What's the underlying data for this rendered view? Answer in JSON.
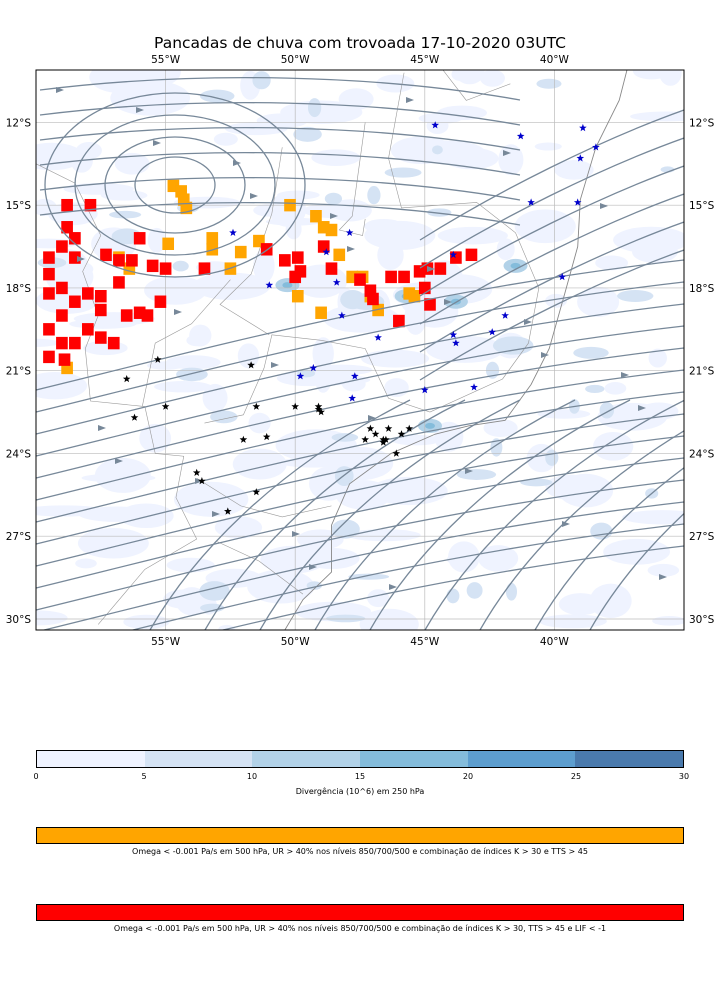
{
  "title": "Pancadas de chuva com trovoada 17-10-2020 03UTC",
  "map": {
    "lon_ticks": [
      {
        "value": -55,
        "label": "55°W"
      },
      {
        "value": -50,
        "label": "50°W"
      },
      {
        "value": -45,
        "label": "45°W"
      },
      {
        "value": -40,
        "label": "40°W"
      }
    ],
    "lat_ticks": [
      {
        "value": -12,
        "label": "12°S"
      },
      {
        "value": -15,
        "label": "15°S"
      },
      {
        "value": -18,
        "label": "18°S"
      },
      {
        "value": -21,
        "label": "21°S"
      },
      {
        "value": -24,
        "label": "24°S"
      },
      {
        "value": -27,
        "label": "27°S"
      },
      {
        "value": -30,
        "label": "30°S"
      }
    ],
    "streamline_color": "#778899",
    "black_stars": [
      [
        -56.5,
        -21.3
      ],
      [
        -55.3,
        -20.6
      ],
      [
        -55.0,
        -22.3
      ],
      [
        -56.2,
        -22.7
      ],
      [
        -53.8,
        -24.7
      ],
      [
        -53.6,
        -25.0
      ],
      [
        -52.6,
        -26.1
      ],
      [
        -51.7,
        -20.8
      ],
      [
        -51.5,
        -22.3
      ],
      [
        -51.1,
        -23.4
      ],
      [
        -52.0,
        -23.5
      ],
      [
        -51.5,
        -25.4
      ],
      [
        -50.0,
        -22.3
      ],
      [
        -49.1,
        -22.3
      ],
      [
        -49.0,
        -22.5
      ],
      [
        -49.1,
        -22.4
      ],
      [
        -47.3,
        -23.5
      ],
      [
        -47.1,
        -23.1
      ],
      [
        -46.9,
        -23.3
      ],
      [
        -46.6,
        -23.5
      ],
      [
        -46.6,
        -23.6
      ],
      [
        -46.4,
        -23.1
      ],
      [
        -46.5,
        -23.5
      ],
      [
        -46.1,
        -24.0
      ],
      [
        -45.9,
        -23.3
      ],
      [
        -45.6,
        -23.1
      ]
    ],
    "blue_stars": [
      [
        -52.4,
        -16.0
      ],
      [
        -51.0,
        -17.9
      ],
      [
        -49.8,
        -21.2
      ],
      [
        -49.3,
        -20.9
      ],
      [
        -48.4,
        -17.8
      ],
      [
        -48.2,
        -19.0
      ],
      [
        -47.9,
        -16.0
      ],
      [
        -47.8,
        -22.0
      ],
      [
        -47.7,
        -21.2
      ],
      [
        -46.8,
        -19.8
      ],
      [
        -45.0,
        -21.7
      ],
      [
        -44.6,
        -12.1
      ],
      [
        -43.9,
        -19.7
      ],
      [
        -43.8,
        -20.0
      ],
      [
        -43.9,
        -16.8
      ],
      [
        -43.1,
        -21.6
      ],
      [
        -42.4,
        -19.6
      ],
      [
        -41.9,
        -19.0
      ],
      [
        -41.3,
        -12.5
      ],
      [
        -40.9,
        -14.9
      ],
      [
        -39.7,
        -17.6
      ],
      [
        -39.1,
        -14.9
      ],
      [
        -39.0,
        -13.3
      ],
      [
        -38.9,
        -12.2
      ],
      [
        -38.4,
        -12.9
      ],
      [
        -48.8,
        -16.7
      ]
    ],
    "red_cells": [
      [
        -59.5,
        -16.9
      ],
      [
        -59.0,
        -16.5
      ],
      [
        -58.5,
        -16.9
      ],
      [
        -58.5,
        -16.2
      ],
      [
        -58.8,
        -15.8
      ],
      [
        -57.9,
        -15.0
      ],
      [
        -58.8,
        -15.0
      ],
      [
        -59.5,
        -17.5
      ],
      [
        -59.5,
        -18.2
      ],
      [
        -59.0,
        -18.0
      ],
      [
        -58.5,
        -18.5
      ],
      [
        -59.0,
        -19.0
      ],
      [
        -59.5,
        -19.5
      ],
      [
        -59.0,
        -20.0
      ],
      [
        -58.5,
        -20.0
      ],
      [
        -59.5,
        -20.5
      ],
      [
        -58.9,
        -20.6
      ],
      [
        -58.0,
        -19.5
      ],
      [
        -57.5,
        -19.8
      ],
      [
        -57.0,
        -20.0
      ],
      [
        -58.0,
        -18.2
      ],
      [
        -57.5,
        -18.8
      ],
      [
        -56.5,
        -19.0
      ],
      [
        -56.0,
        -18.9
      ],
      [
        -55.2,
        -18.5
      ],
      [
        -55.7,
        -19.0
      ],
      [
        -56.8,
        -17.8
      ],
      [
        -56.3,
        -17.0
      ],
      [
        -56.0,
        -16.2
      ],
      [
        -55.5,
        -17.2
      ],
      [
        -55.0,
        -17.3
      ],
      [
        -56.8,
        -17.0
      ],
      [
        -57.3,
        -16.8
      ],
      [
        -57.5,
        -18.3
      ],
      [
        -53.5,
        -17.3
      ],
      [
        -51.1,
        -16.6
      ],
      [
        -50.4,
        -17.0
      ],
      [
        -50.0,
        -17.6
      ],
      [
        -49.8,
        -17.4
      ],
      [
        -49.9,
        -16.9
      ],
      [
        -48.9,
        -16.5
      ],
      [
        -48.6,
        -17.3
      ],
      [
        -47.5,
        -17.7
      ],
      [
        -47.1,
        -18.1
      ],
      [
        -47.0,
        -18.4
      ],
      [
        -46.3,
        -17.6
      ],
      [
        -45.8,
        -17.6
      ],
      [
        -45.2,
        -17.4
      ],
      [
        -45.0,
        -18.0
      ],
      [
        -44.9,
        -17.3
      ],
      [
        -44.8,
        -18.6
      ],
      [
        -46.0,
        -19.2
      ],
      [
        -43.8,
        -16.9
      ],
      [
        -43.2,
        -16.8
      ],
      [
        -44.4,
        -17.3
      ]
    ],
    "orange_cells": [
      [
        -54.7,
        -14.3
      ],
      [
        -54.4,
        -14.5
      ],
      [
        -54.3,
        -14.8
      ],
      [
        -54.2,
        -15.1
      ],
      [
        -53.2,
        -16.2
      ],
      [
        -53.2,
        -16.6
      ],
      [
        -52.1,
        -16.7
      ],
      [
        -51.4,
        -16.3
      ],
      [
        -50.2,
        -15.0
      ],
      [
        -49.2,
        -15.4
      ],
      [
        -48.9,
        -15.8
      ],
      [
        -48.6,
        -15.9
      ],
      [
        -48.3,
        -16.8
      ],
      [
        -49.9,
        -18.3
      ],
      [
        -49.0,
        -18.9
      ],
      [
        -47.8,
        -17.6
      ],
      [
        -47.4,
        -17.6
      ],
      [
        -47.1,
        -18.3
      ],
      [
        -46.8,
        -18.8
      ],
      [
        -45.6,
        -18.2
      ],
      [
        -45.4,
        -18.3
      ],
      [
        -52.5,
        -17.3
      ],
      [
        -54.9,
        -16.4
      ],
      [
        -56.8,
        -16.9
      ],
      [
        -56.4,
        -17.3
      ],
      [
        -58.8,
        -20.9
      ]
    ]
  },
  "colorbar": {
    "colors": [
      "#eff3ff",
      "#d5e3f4",
      "#b2d2e8",
      "#84bcdb",
      "#5d9ecf",
      "#4a7aad"
    ],
    "ticks": [
      "0",
      "5",
      "10",
      "15",
      "20",
      "25",
      "30"
    ],
    "label": "Divergência (10^6) em 250 hPa"
  },
  "legend": [
    {
      "color": "#ffa500",
      "text": "Omega < -0.001 Pa/s em 500 hPa, UR > 40% nos níveis 850/700/500 e combinação de índices K > 30 e TTS > 45"
    },
    {
      "color": "#ff0000",
      "text": "Omega < -0.001 Pa/s em 500 hPa, UR > 40% nos níveis 850/700/500 e combinação de índices K > 30, TTS > 45 e LIF < -1"
    }
  ]
}
